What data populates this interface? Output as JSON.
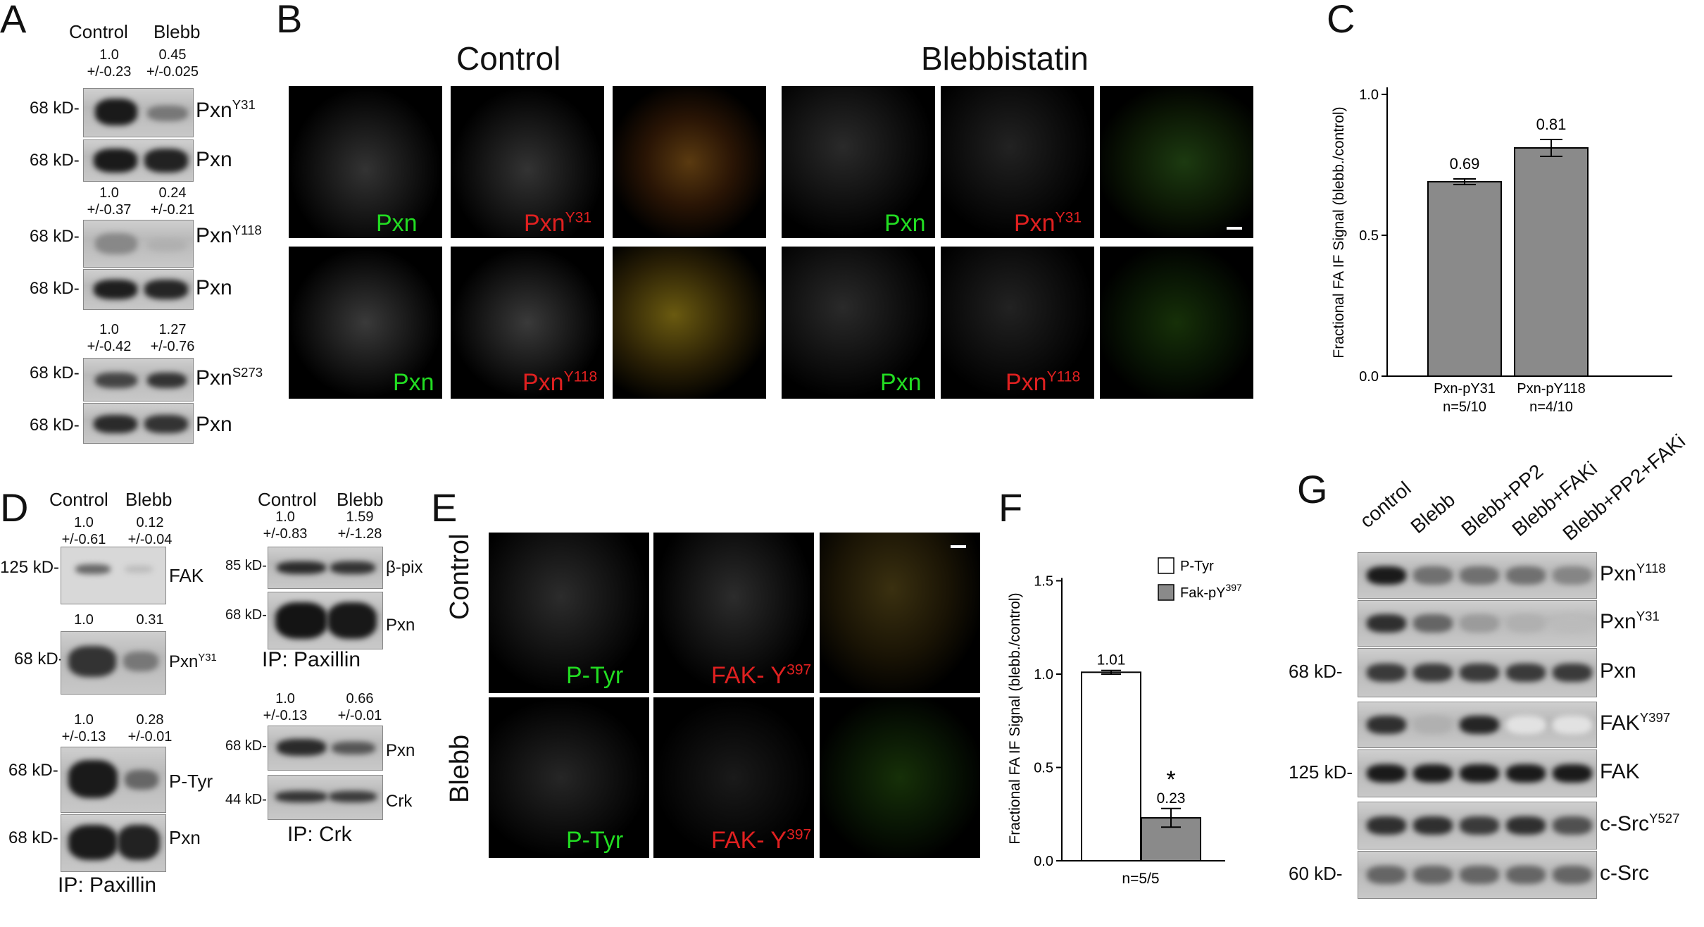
{
  "panels": {
    "A": {
      "label": "A",
      "col_headers": [
        "Control",
        "Blebb"
      ],
      "groups": [
        {
          "values": [
            "1.0\n+/-0.23",
            "0.45\n+/-0.025"
          ],
          "rows": [
            {
              "mw": "68 kD-",
              "name": "Pxn",
              "sup": "Y31"
            },
            {
              "mw": "68 kD-",
              "name": "Pxn",
              "sup": ""
            }
          ]
        },
        {
          "values": [
            "1.0\n+/-0.37",
            "0.24\n+/-0.21"
          ],
          "rows": [
            {
              "mw": "68 kD-",
              "name": "Pxn",
              "sup": "Y118"
            },
            {
              "mw": "68 kD-",
              "name": "Pxn",
              "sup": ""
            }
          ]
        },
        {
          "values": [
            "1.0\n+/-0.42",
            "1.27\n+/-0.76"
          ],
          "rows": [
            {
              "mw": "68 kD-",
              "name": "Pxn",
              "sup": "S273"
            },
            {
              "mw": "68 kD-",
              "name": "Pxn",
              "sup": ""
            }
          ]
        }
      ]
    },
    "B": {
      "label": "B",
      "titles": [
        "Control",
        "Blebbistatin"
      ],
      "row1": {
        "green": "Pxn",
        "red": "Pxn",
        "red_sup": "Y31"
      },
      "row2": {
        "green": "Pxn",
        "red": "Pxn",
        "red_sup": "Y118"
      }
    },
    "C": {
      "label": "C",
      "ylabel": "Fractional FA IF Signal (blebb./control)",
      "yticks": [
        "0.0",
        "0.5",
        "1.0"
      ],
      "bars": [
        {
          "name": "Pxn-pY31",
          "n": "n=5/10",
          "value": 0.69,
          "err": 0.01,
          "label": "0.69"
        },
        {
          "name": "Pxn-pY118",
          "n": "n=4/10",
          "value": 0.81,
          "err": 0.03,
          "label": "0.81"
        }
      ],
      "color": "#8a8a8a"
    },
    "D": {
      "label": "D",
      "left": {
        "col_headers": [
          "Control",
          "Blebb"
        ],
        "blots": [
          {
            "values": [
              "1.0\n+/-0.61",
              "0.12\n+/-0.04"
            ],
            "mw": "125 kD-",
            "name": "FAK",
            "sup": ""
          },
          {
            "values": [
              "1.0",
              "0.31"
            ],
            "mw": "68 kD-",
            "name": "Pxn",
            "sup": "Y31"
          },
          {
            "values": [
              "1.0\n+/-0.13",
              "0.28\n+/-0.01"
            ],
            "mw": "68 kD-",
            "name": "P-Tyr",
            "sup": ""
          },
          {
            "values": [],
            "mw": "68 kD-",
            "name": "Pxn",
            "sup": ""
          }
        ],
        "ip": "IP: Paxillin"
      },
      "right": {
        "col_headers": [
          "Control",
          "Blebb"
        ],
        "top_values": [
          "1.0\n+/-0.83",
          "1.59\n+/-1.28"
        ],
        "blots_top": [
          {
            "mw": "85 kD-",
            "name": "β-pix"
          },
          {
            "mw": "68 kD-",
            "name": "Pxn"
          }
        ],
        "ip_top": "IP: Paxillin",
        "bottom_values": [
          "1.0\n+/-0.13",
          "0.66\n+/-0.01"
        ],
        "blots_bottom": [
          {
            "mw": "68 kD-",
            "name": "Pxn"
          },
          {
            "mw": "44 kD-",
            "name": "Crk"
          }
        ],
        "ip_bottom": "IP: Crk"
      }
    },
    "E": {
      "label": "E",
      "rows": [
        "Control",
        "Blebb"
      ],
      "green": "P-Tyr",
      "red": "FAK- Y",
      "red_sup": "397"
    },
    "F": {
      "label": "F",
      "ylabel": "Fractional FA IF Signal (blebb./control)",
      "yticks": [
        "0.0",
        "0.5",
        "1.0",
        "1.5"
      ],
      "legend": [
        {
          "name": "P-Tyr",
          "color": "#ffffff"
        },
        {
          "name": "Fak-pY",
          "sup": "397",
          "color": "#8a8a8a"
        }
      ],
      "bars": [
        {
          "value": 1.01,
          "err": 0.01,
          "label": "1.01",
          "color": "#ffffff"
        },
        {
          "value": 0.23,
          "err": 0.05,
          "label": "0.23",
          "color": "#8a8a8a",
          "star": "*"
        }
      ],
      "n": "n=5/5"
    },
    "G": {
      "label": "G",
      "lanes": [
        "control",
        "Blebb",
        "Blebb+PP2",
        "Blebb+FAKi",
        "Blebb+PP2+FAKi"
      ],
      "rows": [
        {
          "mw": "",
          "name": "Pxn",
          "sup": "Y118"
        },
        {
          "mw": "",
          "name": "Pxn",
          "sup": "Y31"
        },
        {
          "mw": "68 kD-",
          "name": "Pxn",
          "sup": ""
        },
        {
          "mw": "",
          "name": "FAK",
          "sup": "Y397"
        },
        {
          "mw": "125 kD-",
          "name": "FAK",
          "sup": ""
        },
        {
          "mw": "",
          "name": "c-Src",
          "sup": "Y527"
        },
        {
          "mw": "60 kD-",
          "name": "c-Src",
          "sup": ""
        }
      ]
    }
  }
}
